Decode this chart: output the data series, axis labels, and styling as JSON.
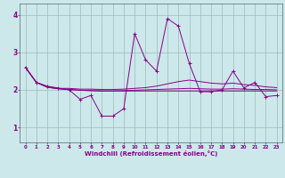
{
  "xlabel": "Windchill (Refroidissement éolien,°C)",
  "bg_color": "#cce8ea",
  "line_color": "#880088",
  "grid_color": "#99bbbb",
  "axis_color": "#556677",
  "xlim": [
    -0.5,
    23.5
  ],
  "ylim": [
    0.6,
    4.3
  ],
  "xticks": [
    0,
    1,
    2,
    3,
    4,
    5,
    6,
    7,
    8,
    9,
    10,
    11,
    12,
    13,
    14,
    15,
    16,
    17,
    18,
    19,
    20,
    21,
    22,
    23
  ],
  "yticks": [
    1,
    2,
    3,
    4
  ],
  "s1_x": [
    0,
    1,
    2,
    3,
    4,
    5,
    6,
    7,
    8,
    9,
    10,
    11,
    12,
    13,
    14,
    15,
    16,
    17,
    18,
    19,
    20,
    21,
    22,
    23
  ],
  "s1_y": [
    2.6,
    2.2,
    2.1,
    2.05,
    2.0,
    1.75,
    1.85,
    1.3,
    1.3,
    1.5,
    3.5,
    2.8,
    2.5,
    3.9,
    3.7,
    2.7,
    1.95,
    1.95,
    2.0,
    2.5,
    2.05,
    2.2,
    1.82,
    1.85
  ],
  "s2_x": [
    0,
    1,
    2,
    3,
    4,
    5,
    6,
    7,
    8,
    9,
    10,
    11,
    12,
    13,
    14,
    15,
    16,
    17,
    18,
    19,
    20,
    21,
    22,
    23
  ],
  "s2_y": [
    2.6,
    2.2,
    2.08,
    2.04,
    2.04,
    2.02,
    2.02,
    2.01,
    2.01,
    2.02,
    2.04,
    2.06,
    2.1,
    2.16,
    2.22,
    2.26,
    2.22,
    2.18,
    2.16,
    2.18,
    2.14,
    2.12,
    2.08,
    2.06
  ],
  "s3_x": [
    0,
    1,
    2,
    3,
    4,
    5,
    6,
    7,
    8,
    9,
    10,
    11,
    12,
    13,
    14,
    15,
    16,
    17,
    18,
    19,
    20,
    21,
    22,
    23
  ],
  "s3_y": [
    2.6,
    2.2,
    2.07,
    2.03,
    2.01,
    1.99,
    1.98,
    1.97,
    1.97,
    1.98,
    1.99,
    2.0,
    2.01,
    2.02,
    2.03,
    2.04,
    2.03,
    2.02,
    2.02,
    2.03,
    2.02,
    2.01,
    2.01,
    2.0
  ],
  "s4_x": [
    0,
    1,
    2,
    3,
    4,
    5,
    6,
    7,
    8,
    9,
    10,
    11,
    12,
    13,
    14,
    15,
    16,
    17,
    18,
    19,
    20,
    21,
    22,
    23
  ],
  "s4_y": [
    2.6,
    2.2,
    2.07,
    2.03,
    2.01,
    1.99,
    1.98,
    1.97,
    1.97,
    1.97,
    1.97,
    1.97,
    1.97,
    1.97,
    1.97,
    1.97,
    1.97,
    1.97,
    1.97,
    1.97,
    1.97,
    1.97,
    1.97,
    1.97
  ]
}
